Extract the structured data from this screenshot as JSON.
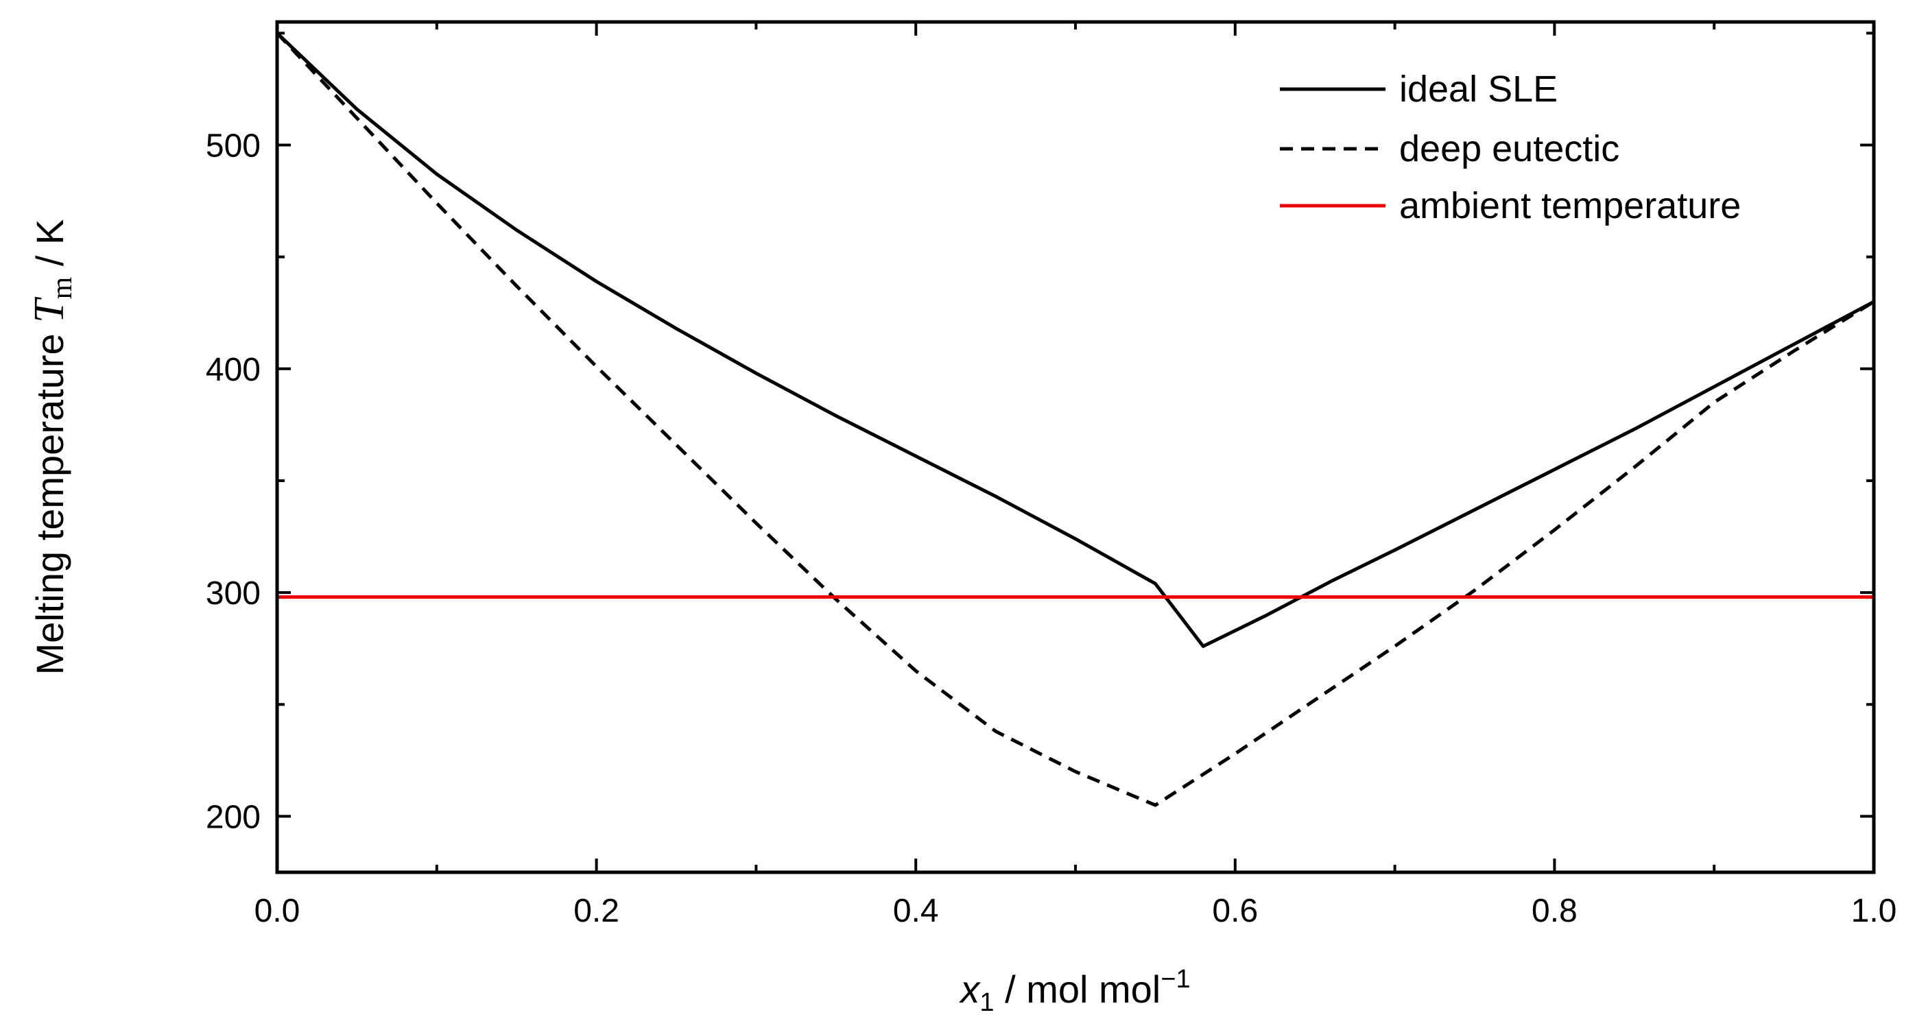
{
  "chart_data": {
    "type": "line",
    "xlabel": {
      "var": "x",
      "sub": "1",
      "unit": " / mol mol",
      "sup": "−1"
    },
    "ylabel": {
      "text": "Melting temperature ",
      "var": "T",
      "sub": "m",
      "unit": " / K"
    },
    "xlim": [
      0.0,
      1.0
    ],
    "ylim": [
      175,
      555
    ],
    "xticks": [
      0.0,
      0.2,
      0.4,
      0.6,
      0.8,
      1.0
    ],
    "xtick_labels": [
      "0.0",
      "0.2",
      "0.4",
      "0.6",
      "0.8",
      "1.0"
    ],
    "xminor": [
      0.1,
      0.3,
      0.5,
      0.7,
      0.9
    ],
    "yticks": [
      200,
      300,
      400,
      500
    ],
    "ytick_labels": [
      "200",
      "300",
      "400",
      "500"
    ],
    "yminor": [
      250,
      350,
      450,
      550
    ],
    "series": [
      {
        "name": "ideal SLE",
        "style": "solid",
        "color": "#000000",
        "x": [
          0.0,
          0.05,
          0.1,
          0.15,
          0.2,
          0.25,
          0.3,
          0.35,
          0.4,
          0.45,
          0.5,
          0.55,
          0.58,
          0.62,
          0.66,
          0.7,
          0.75,
          0.8,
          0.85,
          0.9,
          0.95,
          1.0
        ],
        "y": [
          550,
          516,
          487,
          462,
          439,
          418,
          398,
          379,
          361,
          343,
          324,
          304,
          276,
          290,
          305,
          319,
          337,
          355,
          373,
          392,
          411,
          430
        ]
      },
      {
        "name": "deep eutectic",
        "style": "dashed",
        "color": "#000000",
        "x": [
          0.0,
          0.05,
          0.1,
          0.15,
          0.2,
          0.25,
          0.3,
          0.35,
          0.4,
          0.45,
          0.5,
          0.55,
          0.6,
          0.65,
          0.7,
          0.75,
          0.8,
          0.85,
          0.9,
          0.95,
          1.0
        ],
        "y": [
          550,
          512,
          474,
          437,
          401,
          366,
          331,
          297,
          265,
          238,
          220,
          205,
          228,
          252,
          276,
          301,
          328,
          356,
          385,
          408,
          430
        ]
      },
      {
        "name": "ambient temperature",
        "style": "solid",
        "color": "#ee0000",
        "x": [
          0.0,
          1.0
        ],
        "y": [
          298,
          298
        ]
      }
    ],
    "legend": {
      "position": "top-right",
      "entries": [
        "ideal SLE",
        "deep eutectic",
        "ambient temperature"
      ]
    }
  }
}
